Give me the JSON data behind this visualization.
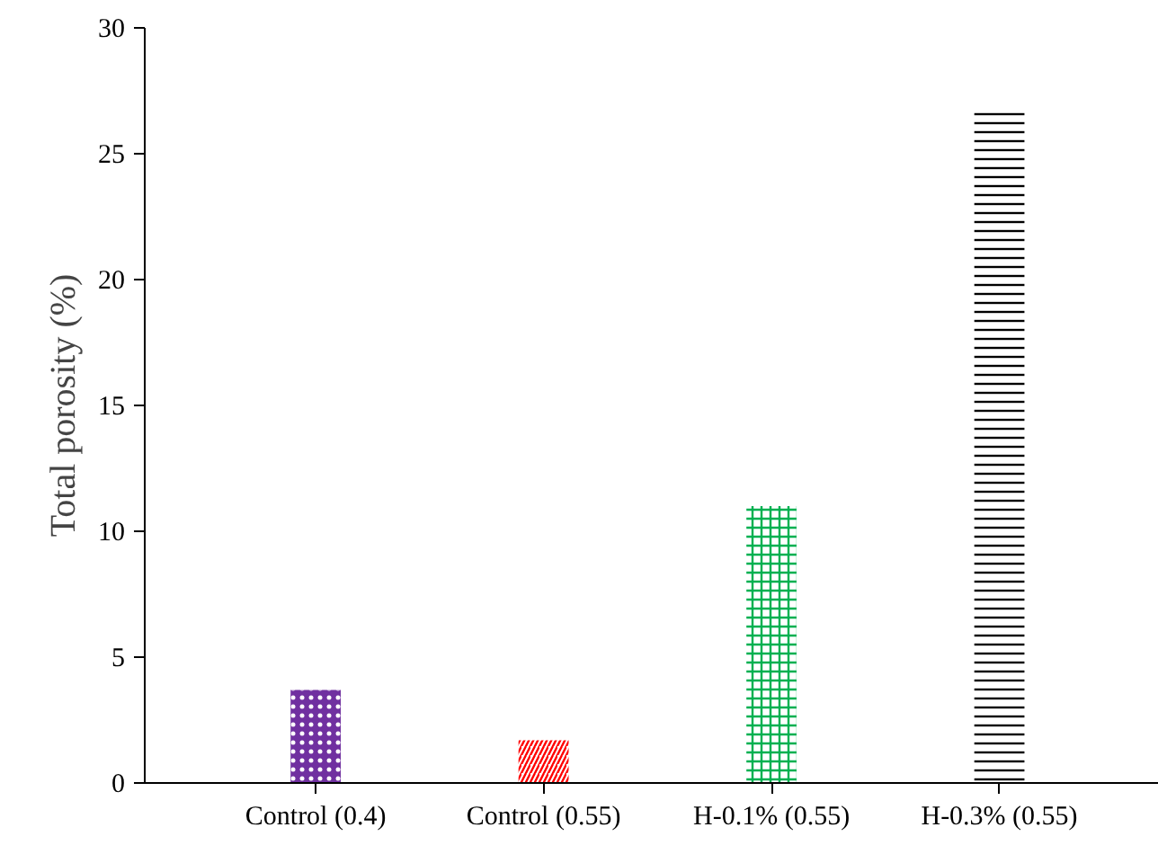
{
  "chart_data": {
    "type": "bar",
    "ylabel": "Total porosity (%)",
    "categories": [
      "Control (0.4)",
      "Control (0.55)",
      "H-0.1% (0.55)",
      "H-0.3% (0.55)"
    ],
    "values": [
      3.7,
      1.7,
      11.0,
      26.7
    ],
    "colors": [
      "#7030a0",
      "#ff0000",
      "#00b050",
      "#000000"
    ],
    "ylim": [
      0,
      30
    ],
    "yticks": [
      0,
      5,
      10,
      15,
      20,
      25,
      30
    ],
    "grid": false
  }
}
